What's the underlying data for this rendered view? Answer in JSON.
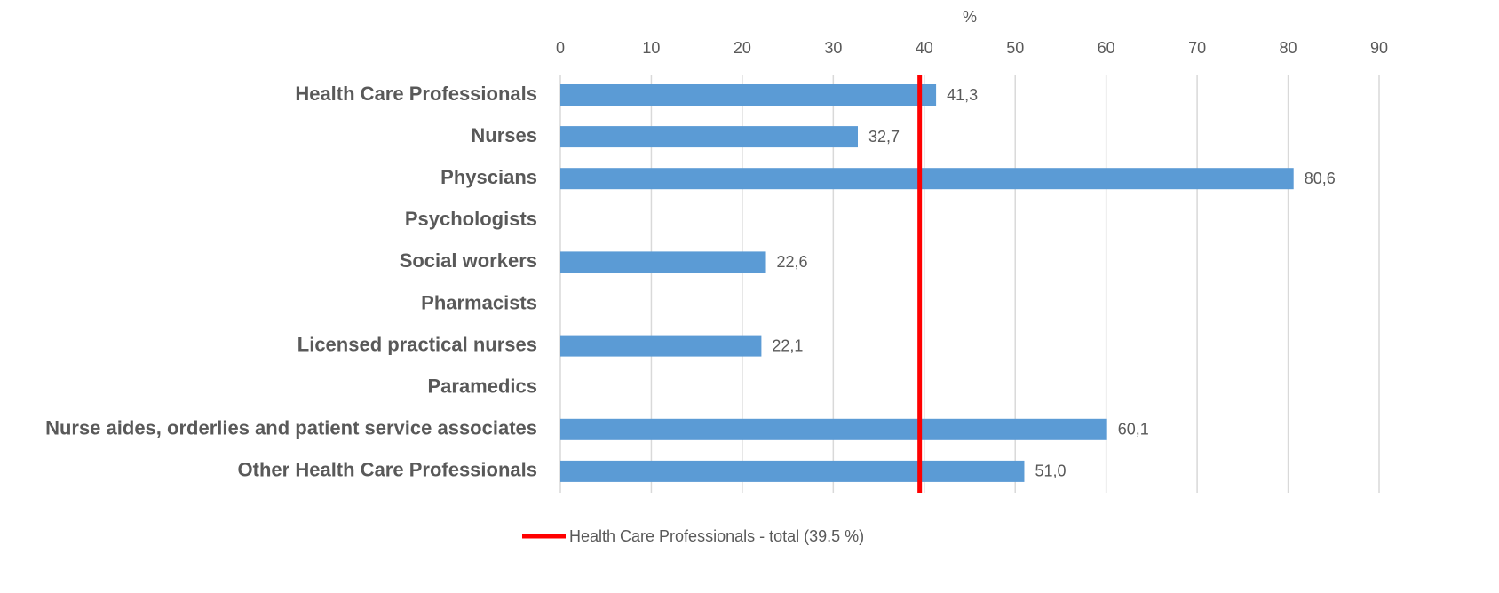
{
  "chart_data": {
    "type": "hbar",
    "x_label": "%",
    "categories": [
      "Health Care Professionals",
      "Nurses",
      "Physcians",
      "Psychologists",
      "Social workers",
      "Pharmacists",
      "Licensed practical nurses",
      "Paramedics",
      "Nurse aides, orderlies and patient service associates",
      "Other Health Care Professionals"
    ],
    "values": [
      41.3,
      32.7,
      80.6,
      null,
      22.6,
      null,
      22.1,
      null,
      60.1,
      51.0
    ],
    "value_labels": [
      "41,3",
      "32,7",
      "80,6",
      null,
      "22,6",
      null,
      "22,1",
      null,
      "60,1",
      "51,0"
    ],
    "color": "#5b9bd5",
    "xlim": [
      0,
      90
    ],
    "xticks": [
      0,
      10,
      20,
      30,
      40,
      50,
      60,
      70,
      80,
      90
    ],
    "grid": true,
    "reference_line": {
      "name": "Health Care Professionals - total (39.5 %)",
      "value": 39.5,
      "color": "#ff0000"
    },
    "legend": "bottom"
  }
}
